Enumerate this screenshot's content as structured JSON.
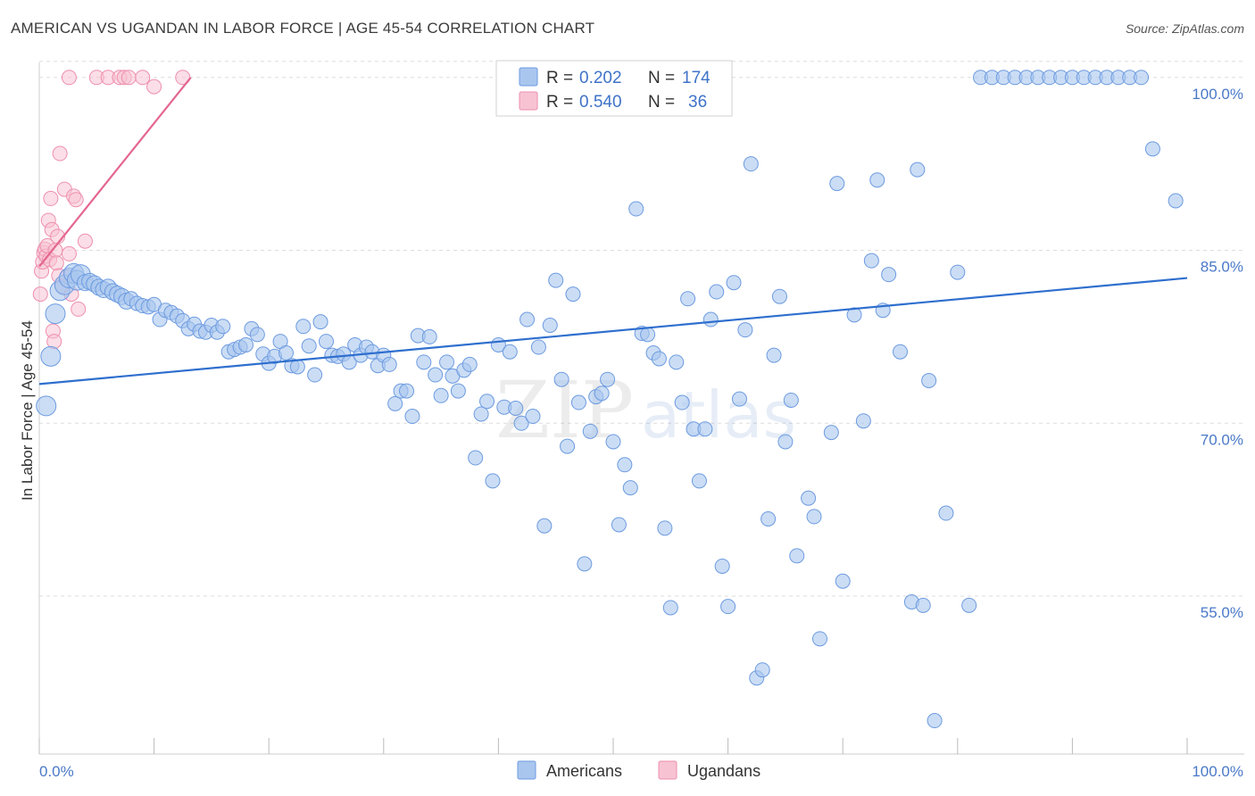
{
  "header": {
    "title": "AMERICAN VS UGANDAN IN LABOR FORCE | AGE 45-54 CORRELATION CHART",
    "source": "Source: ZipAtlas.com"
  },
  "colors": {
    "blue_fill": "#a9c6ef",
    "blue_stroke": "#6d9be0",
    "blue_line": "#2f6fce",
    "pink_fill": "#f7c3d3",
    "pink_stroke": "#ee8fae",
    "pink_line": "#e4668f",
    "tick_text": "#4a79c8",
    "grid": "#dddddd"
  },
  "legend": {
    "r_label": "R =",
    "n_label": "N =",
    "rows": [
      {
        "r": "0.202",
        "n": "174",
        "series": "Americans"
      },
      {
        "r": "0.540",
        "n": "36",
        "series": "Ugandans"
      }
    ]
  },
  "watermark": {
    "part1": "ZIP",
    "part2": "atlas"
  },
  "chart_data": {
    "type": "scatter",
    "title": "AMERICAN VS UGANDAN IN LABOR FORCE | AGE 45-54 CORRELATION CHART",
    "xlabel": "",
    "ylabel": "In Labor Force | Age 45-54",
    "xlim": [
      0,
      100
    ],
    "ylim": [
      41.3,
      101.3
    ],
    "x_tick_labels": [
      "0.0%",
      "100.0%"
    ],
    "y_ticks": [
      55,
      70,
      85,
      100
    ],
    "y_tick_labels": [
      "55.0%",
      "70.0%",
      "85.0%",
      "100.0%"
    ],
    "grid": true,
    "legend_position": "top-center",
    "series": [
      {
        "name": "Americans",
        "r": 0.202,
        "n": 174,
        "trend": {
          "x": [
            0,
            100
          ],
          "y": [
            73.4,
            82.6
          ]
        },
        "points": [
          [
            0.6,
            71.5
          ],
          [
            1.0,
            75.8
          ],
          [
            1.4,
            79.5
          ],
          [
            1.8,
            81.5
          ],
          [
            2.2,
            82.0
          ],
          [
            2.6,
            82.6
          ],
          [
            3.0,
            83.0
          ],
          [
            3.3,
            82.4
          ],
          [
            3.6,
            82.9
          ],
          [
            4.0,
            82.2
          ],
          [
            4.4,
            82.3
          ],
          [
            4.8,
            82.1
          ],
          [
            5.2,
            81.8
          ],
          [
            5.6,
            81.6
          ],
          [
            6.0,
            81.8
          ],
          [
            6.4,
            81.4
          ],
          [
            6.8,
            81.2
          ],
          [
            7.2,
            81.0
          ],
          [
            7.6,
            80.6
          ],
          [
            8.0,
            80.8
          ],
          [
            8.5,
            80.4
          ],
          [
            9.0,
            80.2
          ],
          [
            9.5,
            80.1
          ],
          [
            10.0,
            80.3
          ],
          [
            10.5,
            79.0
          ],
          [
            11.0,
            79.8
          ],
          [
            11.5,
            79.6
          ],
          [
            12.0,
            79.3
          ],
          [
            12.5,
            78.9
          ],
          [
            13.0,
            78.2
          ],
          [
            13.5,
            78.6
          ],
          [
            14.0,
            78.0
          ],
          [
            14.5,
            77.9
          ],
          [
            15.0,
            78.5
          ],
          [
            15.5,
            77.9
          ],
          [
            16.0,
            78.4
          ],
          [
            16.5,
            76.2
          ],
          [
            17.0,
            76.4
          ],
          [
            17.5,
            76.6
          ],
          [
            18.0,
            76.8
          ],
          [
            18.5,
            78.2
          ],
          [
            19.0,
            77.7
          ],
          [
            19.5,
            76.0
          ],
          [
            20.0,
            75.2
          ],
          [
            20.5,
            75.8
          ],
          [
            21.0,
            77.1
          ],
          [
            21.5,
            76.1
          ],
          [
            22.0,
            75.0
          ],
          [
            22.5,
            74.9
          ],
          [
            23.0,
            78.4
          ],
          [
            23.5,
            76.7
          ],
          [
            24.0,
            74.2
          ],
          [
            24.5,
            78.8
          ],
          [
            25.0,
            77.1
          ],
          [
            25.5,
            75.9
          ],
          [
            26.0,
            75.8
          ],
          [
            26.5,
            76.0
          ],
          [
            27.0,
            75.3
          ],
          [
            27.5,
            76.8
          ],
          [
            28.0,
            75.9
          ],
          [
            28.5,
            76.6
          ],
          [
            29.0,
            76.2
          ],
          [
            29.5,
            75.0
          ],
          [
            30.0,
            75.9
          ],
          [
            30.5,
            75.1
          ],
          [
            31.0,
            71.7
          ],
          [
            31.5,
            72.8
          ],
          [
            32.0,
            72.8
          ],
          [
            32.5,
            70.6
          ],
          [
            33.0,
            77.6
          ],
          [
            33.5,
            75.3
          ],
          [
            34.0,
            77.5
          ],
          [
            34.5,
            74.2
          ],
          [
            35.0,
            72.4
          ],
          [
            35.5,
            75.3
          ],
          [
            36.0,
            74.1
          ],
          [
            36.5,
            72.8
          ],
          [
            37.0,
            74.6
          ],
          [
            37.5,
            75.1
          ],
          [
            38.0,
            67.0
          ],
          [
            38.5,
            70.8
          ],
          [
            39.0,
            71.9
          ],
          [
            39.5,
            65.0
          ],
          [
            40.0,
            76.8
          ],
          [
            40.5,
            71.4
          ],
          [
            41.0,
            76.2
          ],
          [
            41.5,
            71.3
          ],
          [
            42.0,
            70.0
          ],
          [
            42.5,
            79.0
          ],
          [
            43.0,
            70.6
          ],
          [
            43.5,
            76.6
          ],
          [
            44.0,
            61.1
          ],
          [
            44.5,
            78.5
          ],
          [
            45.0,
            82.4
          ],
          [
            45.5,
            73.8
          ],
          [
            46.0,
            68.0
          ],
          [
            46.5,
            81.2
          ],
          [
            47.0,
            71.8
          ],
          [
            47.5,
            57.8
          ],
          [
            48.0,
            69.3
          ],
          [
            48.5,
            72.3
          ],
          [
            49.0,
            72.6
          ],
          [
            49.5,
            73.8
          ],
          [
            50.0,
            68.4
          ],
          [
            50.5,
            61.2
          ],
          [
            51.0,
            66.4
          ],
          [
            51.5,
            64.4
          ],
          [
            52.0,
            88.6
          ],
          [
            52.5,
            77.8
          ],
          [
            53.0,
            77.7
          ],
          [
            53.5,
            76.1
          ],
          [
            54.0,
            75.6
          ],
          [
            54.5,
            60.9
          ],
          [
            55.0,
            54.0
          ],
          [
            55.5,
            75.3
          ],
          [
            56.0,
            71.8
          ],
          [
            56.5,
            80.8
          ],
          [
            57.0,
            69.5
          ],
          [
            57.5,
            65.0
          ],
          [
            58.0,
            69.5
          ],
          [
            58.5,
            79.0
          ],
          [
            59.0,
            81.4
          ],
          [
            59.5,
            57.6
          ],
          [
            60.0,
            54.1
          ],
          [
            60.5,
            82.2
          ],
          [
            61.0,
            72.1
          ],
          [
            61.5,
            78.1
          ],
          [
            62.0,
            92.5
          ],
          [
            62.5,
            47.9
          ],
          [
            63.0,
            48.6
          ],
          [
            63.5,
            61.7
          ],
          [
            64.0,
            75.9
          ],
          [
            64.5,
            81.0
          ],
          [
            65.0,
            68.4
          ],
          [
            65.5,
            72.0
          ],
          [
            66.0,
            58.5
          ],
          [
            67.0,
            63.5
          ],
          [
            67.5,
            61.9
          ],
          [
            68.0,
            51.3
          ],
          [
            69.0,
            69.2
          ],
          [
            69.5,
            90.8
          ],
          [
            70.0,
            56.3
          ],
          [
            71.0,
            79.4
          ],
          [
            71.8,
            70.2
          ],
          [
            72.5,
            84.1
          ],
          [
            73.0,
            91.1
          ],
          [
            73.5,
            79.8
          ],
          [
            74.0,
            82.9
          ],
          [
            75.0,
            76.2
          ],
          [
            76.0,
            54.5
          ],
          [
            76.5,
            92.0
          ],
          [
            77.0,
            54.2
          ],
          [
            77.5,
            73.7
          ],
          [
            78.0,
            44.2
          ],
          [
            79.0,
            62.2
          ],
          [
            80.0,
            83.1
          ],
          [
            81.0,
            54.2
          ],
          [
            82.0,
            100.0
          ],
          [
            83.0,
            100.0
          ],
          [
            84.0,
            100.0
          ],
          [
            85.0,
            100.0
          ],
          [
            86.0,
            100.0
          ],
          [
            87.0,
            100.0
          ],
          [
            88.0,
            100.0
          ],
          [
            89.0,
            100.0
          ],
          [
            90.0,
            100.0
          ],
          [
            91.0,
            100.0
          ],
          [
            92.0,
            100.0
          ],
          [
            93.0,
            100.0
          ],
          [
            94.0,
            100.0
          ],
          [
            95.0,
            100.0
          ],
          [
            96.0,
            100.0
          ],
          [
            97.0,
            93.8
          ],
          [
            99.0,
            89.3
          ]
        ]
      },
      {
        "name": "Ugandans",
        "r": 0.54,
        "n": 36,
        "trend": {
          "x": [
            0,
            13.2
          ],
          "y": [
            83.6,
            100.0
          ]
        },
        "points": [
          [
            0.1,
            81.2
          ],
          [
            0.2,
            83.2
          ],
          [
            0.3,
            84.0
          ],
          [
            0.4,
            84.8
          ],
          [
            0.5,
            85.1
          ],
          [
            0.6,
            84.5
          ],
          [
            0.7,
            85.4
          ],
          [
            0.8,
            87.6
          ],
          [
            0.9,
            84.2
          ],
          [
            1.0,
            89.5
          ],
          [
            1.1,
            86.8
          ],
          [
            1.2,
            78.0
          ],
          [
            1.3,
            77.1
          ],
          [
            1.4,
            85.0
          ],
          [
            1.5,
            83.9
          ],
          [
            1.6,
            86.2
          ],
          [
            1.7,
            82.8
          ],
          [
            1.8,
            93.4
          ],
          [
            2.0,
            81.9
          ],
          [
            2.2,
            90.3
          ],
          [
            2.4,
            82.7
          ],
          [
            2.6,
            84.7
          ],
          [
            2.8,
            81.2
          ],
          [
            3.0,
            89.7
          ],
          [
            3.2,
            89.4
          ],
          [
            3.4,
            79.9
          ],
          [
            4.0,
            85.8
          ],
          [
            5.0,
            100.0
          ],
          [
            6.0,
            100.0
          ],
          [
            7.0,
            100.0
          ],
          [
            7.4,
            100.0
          ],
          [
            7.8,
            100.0
          ],
          [
            9.0,
            100.0
          ],
          [
            10.0,
            99.2
          ],
          [
            12.5,
            100.0
          ],
          [
            2.6,
            100.0
          ]
        ]
      }
    ]
  },
  "bottom_legend": [
    "Americans",
    "Ugandans"
  ]
}
